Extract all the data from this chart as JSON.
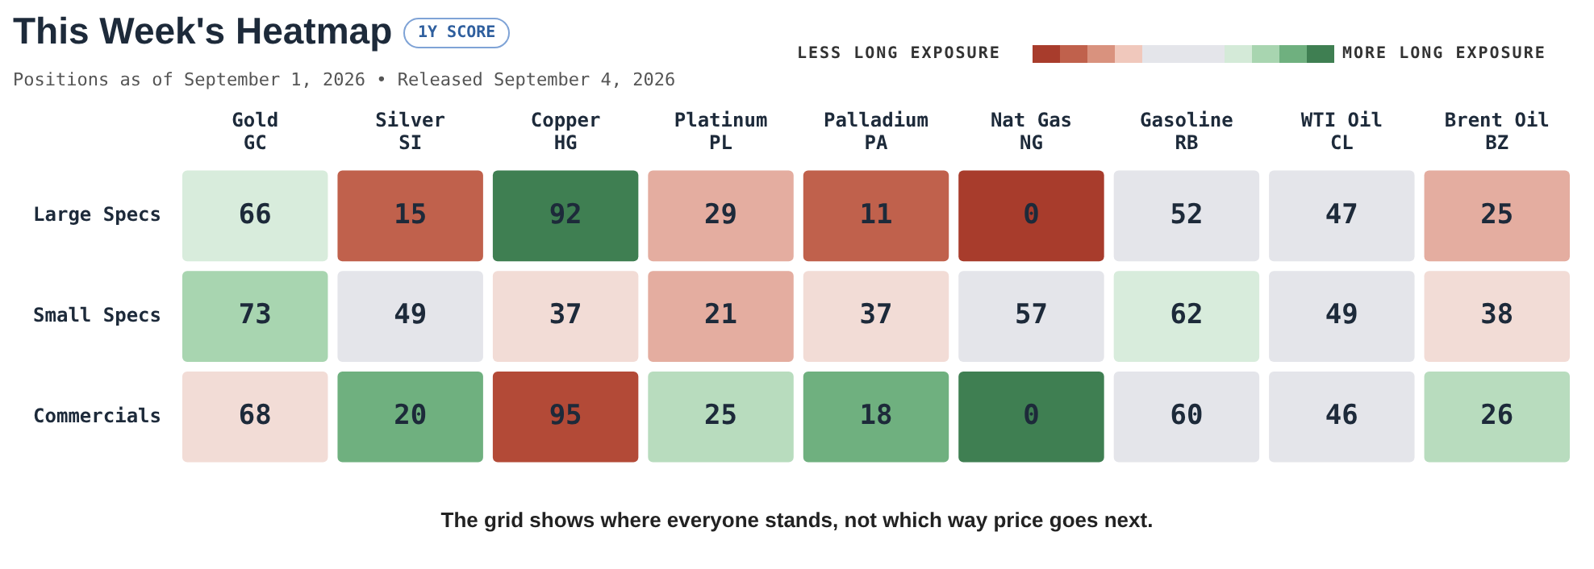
{
  "chart_data": {
    "type": "heatmap",
    "title": "This Week's Heatmap",
    "subtitle": "Positions as of September 1, 2026 • Released September 4, 2026",
    "annotations": [
      "1Y SCORE",
      "LESS LONG EXPOSURE",
      "MORE LONG EXPOSURE",
      "The grid shows where everyone stands, not which way price goes next."
    ],
    "categories": [
      "Gold\nGC",
      "Silver\nSI",
      "Copper\nHG",
      "Platinum\nPL",
      "Palladium\nPA",
      "Nat Gas\nNG",
      "Gasoline\nRB",
      "WTI Oil\nCL",
      "Brent Oil\nBZ"
    ],
    "y_categories": [
      "Large Specs",
      "Small Specs",
      "Commercials"
    ],
    "cells": [
      [
        66,
        15,
        92,
        29,
        11,
        0,
        52,
        47,
        25
      ],
      [
        73,
        49,
        37,
        21,
        37,
        57,
        62,
        49,
        38
      ],
      [
        68,
        20,
        95,
        25,
        18,
        0,
        60,
        46,
        26
      ]
    ],
    "colors": [
      [
        "#d8ecdc",
        "#c0614c",
        "#3f7f52",
        "#e4ada0",
        "#c0614c",
        "#a83c2c",
        "#e4e5ea",
        "#e4e5ea",
        "#e4ada0"
      ],
      [
        "#a8d5b0",
        "#e4e5ea",
        "#f2dcd6",
        "#e4ada0",
        "#f2dcd6",
        "#e4e5ea",
        "#d8ecdc",
        "#e4e5ea",
        "#f2dcd6"
      ],
      [
        "#f2dcd6",
        "#6fb07f",
        "#b34a37",
        "#b8dcbe",
        "#6fb07f",
        "#3f7f52",
        "#e4e5ea",
        "#e4e5ea",
        "#b8dcbe"
      ]
    ],
    "data_labels": true,
    "legend": false,
    "grid": false
  }
}
